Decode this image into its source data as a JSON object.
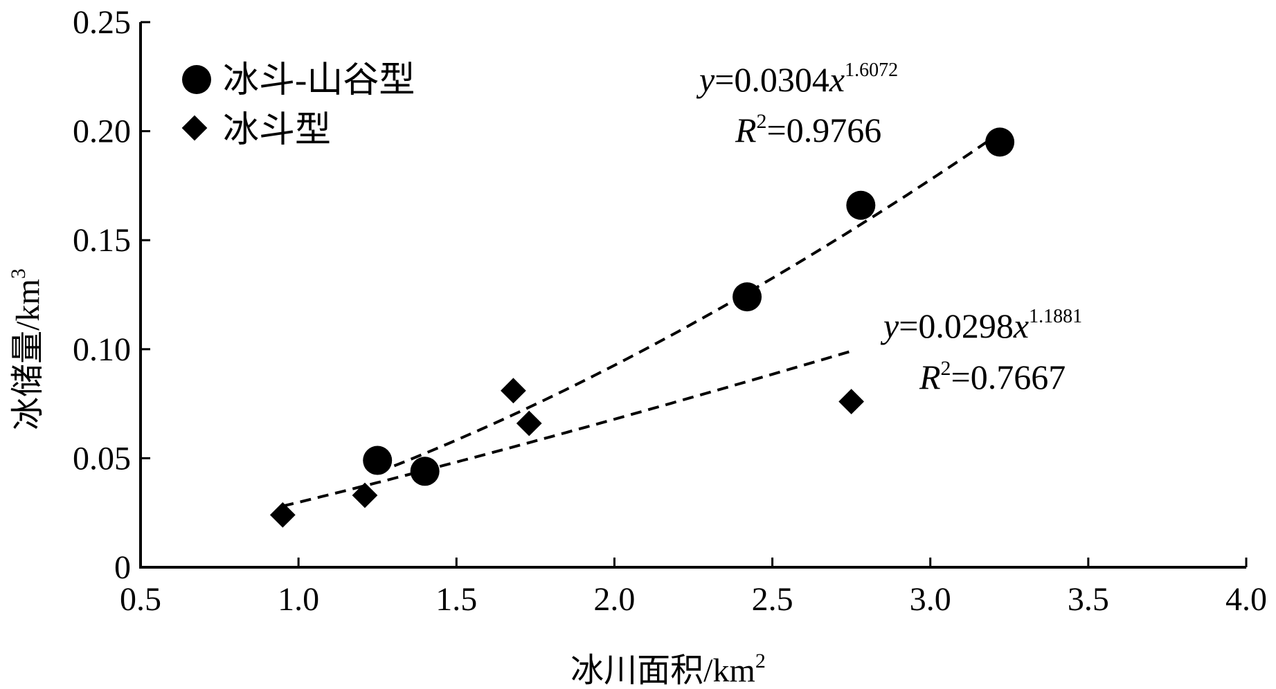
{
  "chart_data": {
    "type": "scatter",
    "title": "",
    "xlabel": "冰川面积/km",
    "xlabel_sup": "2",
    "ylabel": "冰储量/km",
    "ylabel_sup": "3",
    "xlim": [
      0.5,
      4.0
    ],
    "ylim": [
      0,
      0.25
    ],
    "x_ticks": [
      "0.5",
      "1.0",
      "1.5",
      "2.0",
      "2.5",
      "3.0",
      "3.5",
      "4.0"
    ],
    "y_ticks": [
      "0",
      "0.05",
      "0.10",
      "0.15",
      "0.20",
      "0.25"
    ],
    "x_tick_values": [
      0.5,
      1.0,
      1.5,
      2.0,
      2.5,
      3.0,
      3.5,
      4.0
    ],
    "y_tick_values": [
      0,
      0.05,
      0.1,
      0.15,
      0.2,
      0.25
    ],
    "grid": false,
    "legend_position": "top-left",
    "series": [
      {
        "name": "冰斗-山谷型",
        "marker": "circle",
        "color": "#000000",
        "x": [
          1.25,
          1.4,
          2.42,
          2.78,
          3.22
        ],
        "y": [
          0.049,
          0.044,
          0.124,
          0.166,
          0.195
        ],
        "fit": {
          "a": 0.0304,
          "b": 1.6072,
          "x_range": [
            1.25,
            3.22
          ],
          "eq_y": "y",
          "eq_mid": "=0.0304",
          "eq_x": "x",
          "eq_exp": "1.6072",
          "r2_r": "R",
          "r2_sup": "2",
          "r2_val": "=0.9766"
        }
      },
      {
        "name": "冰斗型",
        "marker": "diamond",
        "color": "#000000",
        "x": [
          0.95,
          1.21,
          1.68,
          1.73,
          2.75
        ],
        "y": [
          0.024,
          0.033,
          0.081,
          0.066,
          0.076
        ],
        "fit": {
          "a": 0.0298,
          "b": 1.1881,
          "x_range": [
            0.95,
            2.75
          ],
          "eq_y": "y",
          "eq_mid": "=0.0298",
          "eq_x": "x",
          "eq_exp": "1.1881",
          "r2_r": "R",
          "r2_sup": "2",
          "r2_val": "=0.7667"
        }
      }
    ]
  }
}
